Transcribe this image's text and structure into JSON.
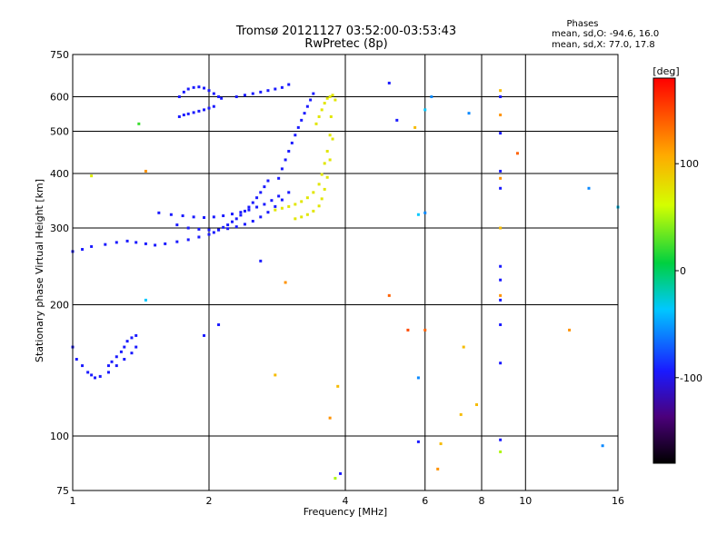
{
  "chart_data": {
    "type": "scatter",
    "title": "Tromsø 20121127 03:52:00-03:53:43",
    "subtitle": "RwPretec (8p)",
    "xlabel": "Frequency [MHz]",
    "ylabel": "Stationary phase Virtual Height [km]",
    "x_scale": "log",
    "y_scale": "log",
    "xlim": [
      1,
      16
    ],
    "ylim": [
      75,
      750
    ],
    "x_ticks": [
      "1",
      "2",
      "4",
      "6",
      "8",
      "10",
      "16"
    ],
    "x_tick_values": [
      1,
      2,
      4,
      6,
      8,
      10,
      16
    ],
    "y_ticks": [
      "75",
      "100",
      "200",
      "300",
      "400",
      "500",
      "600",
      "750"
    ],
    "y_tick_values": [
      75,
      100,
      200,
      300,
      400,
      500,
      600,
      750
    ],
    "grid": true,
    "legend": {
      "title": "Phases",
      "line1": "mean, sd,O: -94.6, 16.0",
      "line2": "mean, sd,X:  77.0, 17.8",
      "placement": "top-right"
    },
    "colorbar": {
      "label": "[deg]",
      "min": -180,
      "max": 180,
      "ticks": [
        "100",
        "0",
        "-100"
      ],
      "tick_values": [
        100,
        0,
        -100
      ]
    },
    "traces": [
      {
        "name": "",
        "phase": -95,
        "x": [
          1.0,
          1.05,
          1.1,
          1.18,
          1.25,
          1.32,
          1.38,
          1.45,
          1.52,
          1.6,
          1.7,
          1.8,
          1.9,
          2.0,
          2.05,
          2.1,
          2.15,
          2.2,
          2.25,
          2.3,
          2.35,
          2.4,
          2.45,
          2.5,
          2.55,
          2.6,
          2.65,
          2.7
        ],
        "y": [
          265,
          268,
          272,
          275,
          278,
          280,
          278,
          276,
          274,
          276,
          279,
          282,
          286,
          290,
          293,
          297,
          301,
          305,
          310,
          315,
          321,
          328,
          335,
          343,
          352,
          362,
          373,
          385
        ]
      },
      {
        "name": "",
        "phase": -95,
        "x": [
          1.55,
          1.65,
          1.75,
          1.85,
          1.95,
          2.05,
          2.15,
          2.25,
          2.35,
          2.45,
          2.55,
          2.65,
          2.75,
          2.85
        ],
        "y": [
          325,
          322,
          320,
          318,
          317,
          318,
          320,
          323,
          326,
          330,
          335,
          340,
          347,
          355
        ]
      },
      {
        "name": "",
        "phase": -95,
        "x": [
          1.7,
          1.8,
          1.9,
          2.0,
          2.1,
          2.2,
          2.3,
          2.4,
          2.5,
          2.6,
          2.7,
          2.8,
          2.9,
          3.0
        ],
        "y": [
          305,
          300,
          298,
          297,
          297,
          299,
          302,
          306,
          311,
          318,
          326,
          336,
          348,
          362
        ]
      },
      {
        "name": "",
        "phase": -95,
        "x": [
          1.72,
          1.76,
          1.8,
          1.85,
          1.9,
          1.95,
          2.0,
          2.05,
          2.1,
          2.13
        ],
        "y": [
          600,
          615,
          625,
          630,
          632,
          628,
          620,
          610,
          600,
          595
        ]
      },
      {
        "name": "",
        "phase": -95,
        "x": [
          1.72,
          1.76,
          1.8,
          1.85,
          1.9,
          1.95,
          2.0,
          2.05
        ],
        "y": [
          540,
          545,
          548,
          552,
          556,
          560,
          565,
          570
        ]
      },
      {
        "name": "",
        "phase": -95,
        "x": [
          2.3,
          2.4,
          2.5,
          2.6,
          2.7,
          2.8,
          2.9,
          3.0
        ],
        "y": [
          600,
          605,
          610,
          615,
          620,
          625,
          630,
          640
        ]
      },
      {
        "name": "",
        "phase": -95,
        "x": [
          2.85,
          2.9,
          2.95,
          3.0,
          3.05,
          3.1,
          3.15,
          3.2,
          3.25,
          3.3,
          3.35,
          3.4
        ],
        "y": [
          390,
          410,
          430,
          450,
          470,
          490,
          510,
          530,
          550,
          570,
          590,
          610
        ]
      },
      {
        "name": "",
        "phase": -95,
        "x": [
          1.0,
          1.02,
          1.05,
          1.08,
          1.1,
          1.12,
          1.15,
          1.2,
          1.25,
          1.3,
          1.35,
          1.38
        ],
        "y": [
          160,
          150,
          145,
          140,
          138,
          136,
          137,
          140,
          145,
          150,
          155,
          160
        ]
      },
      {
        "name": "",
        "phase": -95,
        "x": [
          1.2,
          1.22,
          1.25,
          1.28,
          1.3,
          1.32,
          1.35,
          1.38
        ],
        "y": [
          145,
          148,
          152,
          156,
          160,
          165,
          168,
          170
        ]
      },
      {
        "name": "",
        "phase": 75,
        "x": [
          2.8,
          2.9,
          3.0,
          3.1,
          3.2,
          3.3,
          3.4,
          3.5,
          3.55,
          3.6,
          3.65,
          3.7,
          3.72
        ],
        "y": [
          330,
          333,
          336,
          340,
          345,
          352,
          362,
          378,
          398,
          422,
          450,
          490,
          540
        ]
      },
      {
        "name": "",
        "phase": 75,
        "x": [
          3.1,
          3.2,
          3.3,
          3.4,
          3.5,
          3.55,
          3.6,
          3.65,
          3.7,
          3.75
        ],
        "y": [
          315,
          318,
          322,
          328,
          337,
          350,
          368,
          392,
          430,
          480
        ]
      },
      {
        "name": "",
        "phase": 75,
        "x": [
          3.45,
          3.5,
          3.55,
          3.6,
          3.65,
          3.7,
          3.75,
          3.8
        ],
        "y": [
          520,
          540,
          560,
          580,
          595,
          600,
          605,
          590
        ]
      }
    ],
    "scattered_points": [
      {
        "x": 1.1,
        "y": 395,
        "phase": 70
      },
      {
        "x": 1.4,
        "y": 520,
        "phase": 20
      },
      {
        "x": 1.45,
        "y": 405,
        "phase": 120
      },
      {
        "x": 1.45,
        "y": 205,
        "phase": -40
      },
      {
        "x": 1.95,
        "y": 170,
        "phase": -95
      },
      {
        "x": 2.1,
        "y": 180,
        "phase": -95
      },
      {
        "x": 2.6,
        "y": 252,
        "phase": -95
      },
      {
        "x": 2.95,
        "y": 225,
        "phase": 120
      },
      {
        "x": 2.8,
        "y": 138,
        "phase": 100
      },
      {
        "x": 3.7,
        "y": 110,
        "phase": 120
      },
      {
        "x": 3.85,
        "y": 130,
        "phase": 100
      },
      {
        "x": 3.8,
        "y": 80,
        "phase": 50
      },
      {
        "x": 3.9,
        "y": 82,
        "phase": -95
      },
      {
        "x": 5.0,
        "y": 645,
        "phase": -95
      },
      {
        "x": 5.2,
        "y": 530,
        "phase": -95
      },
      {
        "x": 5.7,
        "y": 510,
        "phase": 100
      },
      {
        "x": 5.8,
        "y": 322,
        "phase": -40
      },
      {
        "x": 6.0,
        "y": 325,
        "phase": -60
      },
      {
        "x": 6.0,
        "y": 560,
        "phase": -40
      },
      {
        "x": 5.0,
        "y": 210,
        "phase": 140
      },
      {
        "x": 5.5,
        "y": 175,
        "phase": 150
      },
      {
        "x": 6.0,
        "y": 175,
        "phase": 140
      },
      {
        "x": 5.8,
        "y": 136,
        "phase": -60
      },
      {
        "x": 5.8,
        "y": 97,
        "phase": -95
      },
      {
        "x": 6.5,
        "y": 96,
        "phase": 100
      },
      {
        "x": 6.4,
        "y": 84,
        "phase": 120
      },
      {
        "x": 6.2,
        "y": 600,
        "phase": -60
      },
      {
        "x": 7.5,
        "y": 550,
        "phase": -60
      },
      {
        "x": 7.3,
        "y": 160,
        "phase": 100
      },
      {
        "x": 7.2,
        "y": 112,
        "phase": 100
      },
      {
        "x": 7.8,
        "y": 118,
        "phase": 100
      },
      {
        "x": 8.8,
        "y": 620,
        "phase": 100
      },
      {
        "x": 8.8,
        "y": 600,
        "phase": -95
      },
      {
        "x": 8.8,
        "y": 545,
        "phase": 120
      },
      {
        "x": 8.8,
        "y": 495,
        "phase": -95
      },
      {
        "x": 8.8,
        "y": 405,
        "phase": -95
      },
      {
        "x": 8.8,
        "y": 390,
        "phase": 120
      },
      {
        "x": 8.8,
        "y": 370,
        "phase": -95
      },
      {
        "x": 8.8,
        "y": 300,
        "phase": 100
      },
      {
        "x": 8.8,
        "y": 245,
        "phase": -95
      },
      {
        "x": 8.8,
        "y": 228,
        "phase": -95
      },
      {
        "x": 8.8,
        "y": 210,
        "phase": 120
      },
      {
        "x": 8.8,
        "y": 205,
        "phase": -95
      },
      {
        "x": 8.8,
        "y": 180,
        "phase": -95
      },
      {
        "x": 8.8,
        "y": 147,
        "phase": -95
      },
      {
        "x": 8.8,
        "y": 98,
        "phase": -95
      },
      {
        "x": 8.8,
        "y": 92,
        "phase": 50
      },
      {
        "x": 9.6,
        "y": 445,
        "phase": 140
      },
      {
        "x": 12.5,
        "y": 175,
        "phase": 120
      },
      {
        "x": 13.8,
        "y": 370,
        "phase": -60
      },
      {
        "x": 14.8,
        "y": 95,
        "phase": -60
      },
      {
        "x": 16.0,
        "y": 335,
        "phase": -40
      }
    ]
  }
}
